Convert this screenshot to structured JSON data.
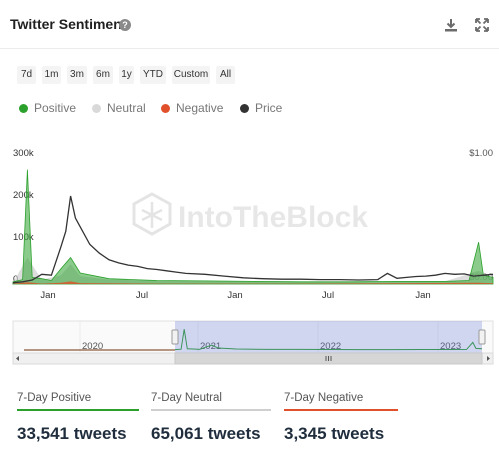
{
  "header": {
    "title": "Twitter Sentiment"
  },
  "range_buttons": [
    "7d",
    "1m",
    "3m",
    "6m",
    "1y",
    "YTD",
    "Custom",
    "All"
  ],
  "legend": [
    {
      "label": "Positive",
      "color": "#2ca02c"
    },
    {
      "label": "Neutral",
      "color": "#d9d9d9"
    },
    {
      "label": "Negative",
      "color": "#e0502a"
    },
    {
      "label": "Price",
      "color": "#333333"
    }
  ],
  "watermark": "IntoTheBlock",
  "chart_data": {
    "type": "line",
    "y_left_ticks": [
      "300k",
      "200k",
      "100k",
      "0"
    ],
    "y_right_ticks": [
      "$1.00",
      "$0.00"
    ],
    "ylim": [
      0,
      300000
    ],
    "x_ticks": [
      "Jan",
      "Jul",
      "Jan",
      "Jul",
      "Jan"
    ],
    "navigator_ticks": [
      "2020",
      "2021",
      "2022",
      "2023"
    ],
    "series": [
      {
        "name": "Price",
        "x": [
          0,
          2,
          4,
          6,
          8,
          10,
          11,
          12,
          13,
          14,
          16,
          18,
          20,
          22,
          24,
          26,
          28,
          30,
          32,
          34,
          36,
          40,
          44,
          48,
          52,
          56,
          60,
          64,
          68,
          72,
          76,
          78,
          80,
          82,
          84,
          86,
          88,
          90,
          92,
          94,
          96,
          98,
          100
        ],
        "values": [
          3000,
          5000,
          9000,
          22000,
          20000,
          85000,
          120000,
          200000,
          150000,
          130000,
          90000,
          70000,
          55000,
          48000,
          43000,
          40000,
          35000,
          33000,
          30000,
          27000,
          24000,
          22000,
          18000,
          14000,
          12000,
          11000,
          11000,
          10000,
          10000,
          9000,
          10000,
          24000,
          13000,
          15000,
          17000,
          18000,
          20000,
          24000,
          22000,
          23000,
          18000,
          20000,
          22000
        ]
      },
      {
        "name": "Positive",
        "x": [
          0,
          2,
          3,
          4,
          6,
          8,
          10,
          12,
          14,
          20,
          30,
          40,
          50,
          60,
          70,
          80,
          90,
          95,
          97,
          98,
          100
        ],
        "values": [
          5000,
          10000,
          260000,
          15000,
          12000,
          8000,
          35000,
          60000,
          25000,
          12000,
          8000,
          7000,
          6000,
          5000,
          5000,
          6000,
          6000,
          8000,
          95000,
          20000,
          15000
        ]
      },
      {
        "name": "Neutral",
        "x": [
          0,
          3,
          6,
          10,
          12,
          14,
          20,
          30,
          40,
          50,
          60,
          70,
          80,
          90,
          97,
          100
        ],
        "values": [
          3000,
          60000,
          10000,
          20000,
          45000,
          18000,
          10000,
          8000,
          6000,
          5000,
          5000,
          5000,
          5000,
          6000,
          30000,
          12000
        ]
      },
      {
        "name": "Negative",
        "x": [
          0,
          3,
          6,
          10,
          12,
          14,
          30,
          60,
          97,
          100
        ],
        "values": [
          500,
          4000,
          1000,
          3000,
          6000,
          2000,
          1000,
          800,
          3000,
          1500
        ]
      }
    ]
  },
  "stats": [
    {
      "label": "7-Day Positive",
      "value": "33,541 tweets",
      "color": "#2ca02c"
    },
    {
      "label": "7-Day Neutral",
      "value": "65,061 tweets",
      "color": "#cfcfcf"
    },
    {
      "label": "7-Day Negative",
      "value": "3,345 tweets",
      "color": "#e0502a"
    }
  ]
}
